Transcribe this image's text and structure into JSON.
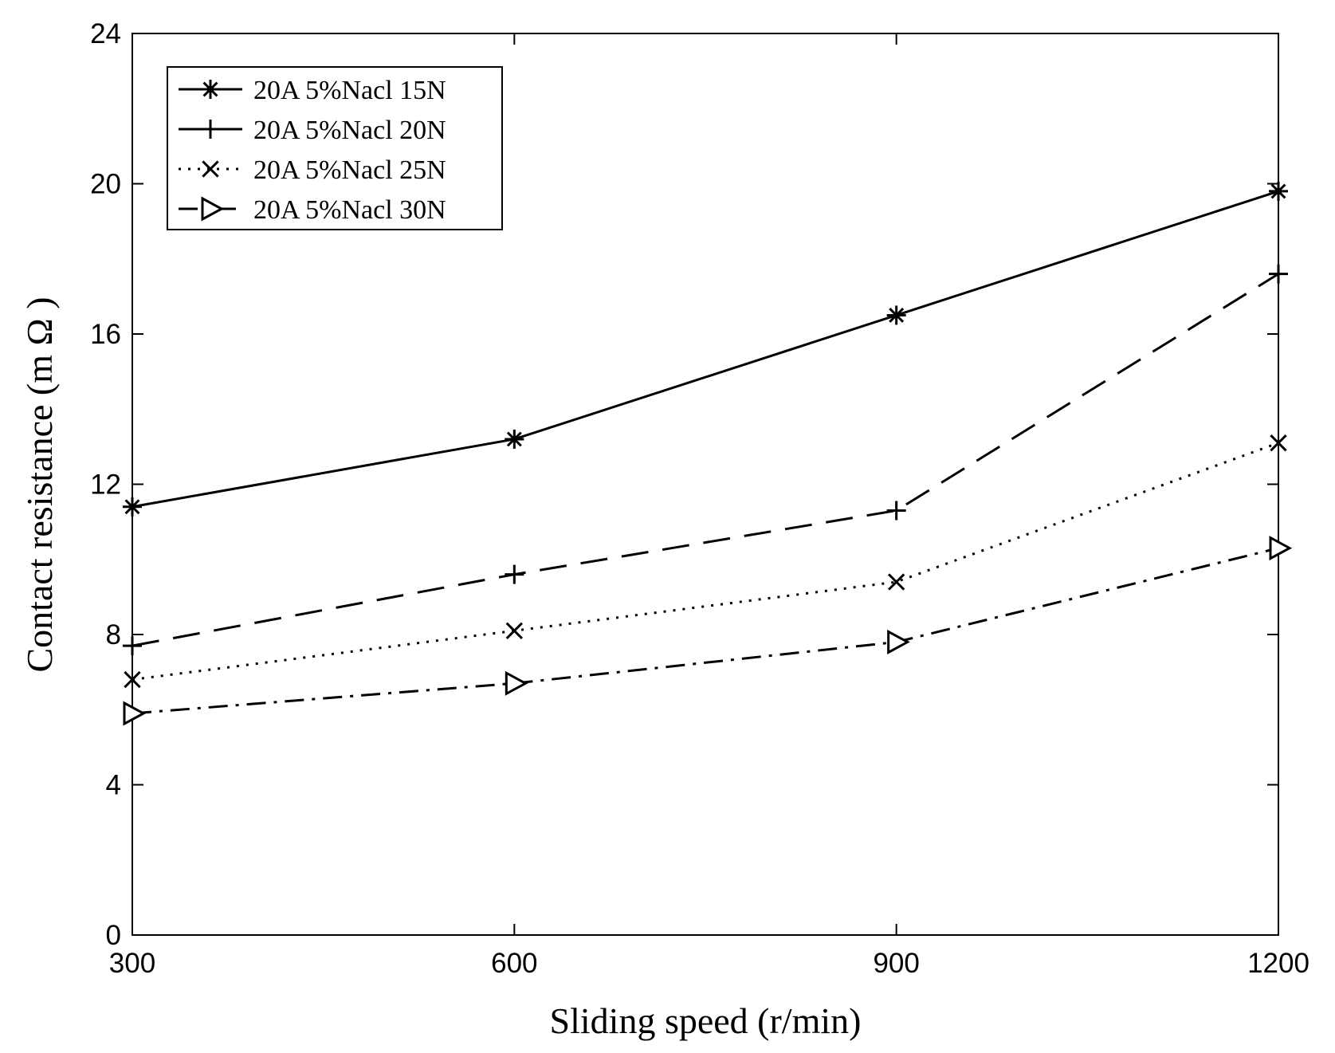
{
  "chart_data": {
    "type": "line",
    "title": "",
    "xlabel": "Sliding speed (r/min)",
    "ylabel": "Contact resistance (m Ω )",
    "x": [
      300,
      600,
      900,
      1200
    ],
    "xlim": [
      300,
      1200
    ],
    "ylim": [
      0,
      24
    ],
    "xticks": [
      "300",
      "600",
      "900",
      "1200"
    ],
    "yticks": [
      "0",
      "4",
      "8",
      "12",
      "16",
      "20",
      "24"
    ],
    "grid": false,
    "legend_position": "top-left",
    "series": [
      {
        "name": "20A 5%Nacl 15N",
        "values": [
          11.4,
          13.2,
          16.5,
          19.8
        ],
        "marker": "asterisk",
        "dash": "solid"
      },
      {
        "name": "20A 5%Nacl 20N",
        "values": [
          7.7,
          9.6,
          11.3,
          17.6
        ],
        "marker": "plus",
        "dash": "long-dash"
      },
      {
        "name": "20A 5%Nacl 25N",
        "values": [
          6.8,
          8.1,
          9.4,
          13.1
        ],
        "marker": "x",
        "dash": "dotted"
      },
      {
        "name": "20A 5%Nacl 30N",
        "values": [
          5.9,
          6.7,
          7.8,
          10.3
        ],
        "marker": "triangle-right",
        "dash": "dash-dot"
      }
    ]
  }
}
